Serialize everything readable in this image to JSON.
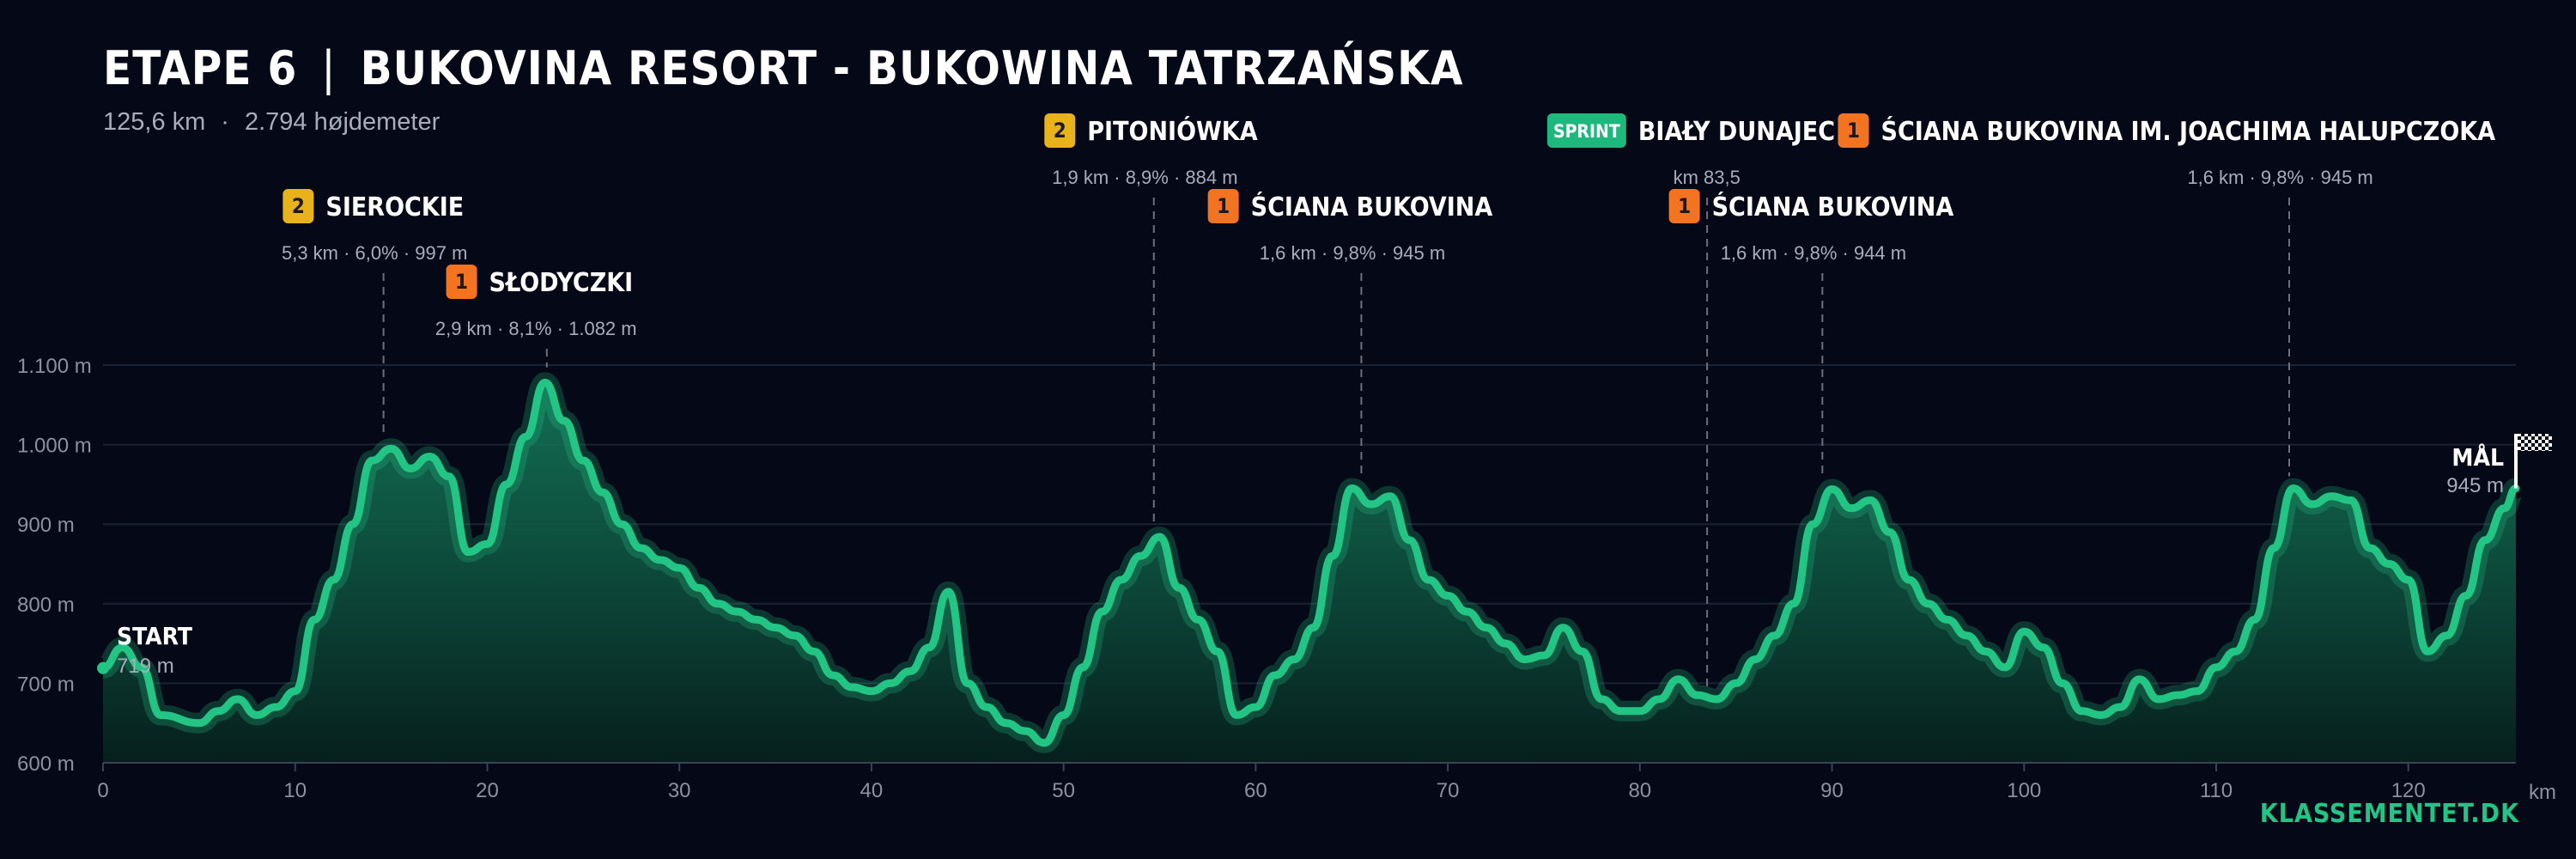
{
  "header": {
    "stage": "ETAPE 6",
    "route": "BUKOVINA RESORT - BUKOWINA TATRZAŃSKA",
    "distance": "125,6 km",
    "elevation_gain": "2.794 højdemeter"
  },
  "brand": "KLASSEMENTET.DK",
  "colors": {
    "background": "#050816",
    "line": "#23c585",
    "cat1": "#f37321",
    "cat2": "#e8b21a",
    "sprint": "#1db97c",
    "grid": "#1b2233",
    "text_muted": "#a7adba"
  },
  "chart_data": {
    "type": "area",
    "xlabel": "km",
    "ylabel": "",
    "xlim": [
      0,
      125.6
    ],
    "ylim": [
      600,
      1100
    ],
    "x_ticks": [
      0,
      10,
      20,
      30,
      40,
      50,
      60,
      70,
      80,
      90,
      100,
      110,
      120
    ],
    "y_ticks": [
      600,
      700,
      800,
      900,
      1000,
      1100
    ],
    "y_tick_labels": [
      "600 m",
      "700 m",
      "800 m",
      "900 m",
      "1.000 m",
      "1.100 m"
    ],
    "grid": true,
    "start": {
      "label": "START",
      "elevation": "719 m",
      "x": 0,
      "y": 719
    },
    "finish": {
      "label": "MÅL",
      "elevation": "945 m",
      "x": 125.6,
      "y": 945
    },
    "profile": [
      [
        0,
        719
      ],
      [
        1,
        745
      ],
      [
        2,
        720
      ],
      [
        3,
        660
      ],
      [
        5,
        650
      ],
      [
        6,
        665
      ],
      [
        7,
        680
      ],
      [
        8,
        660
      ],
      [
        9,
        670
      ],
      [
        10,
        690
      ],
      [
        11,
        780
      ],
      [
        12,
        830
      ],
      [
        13,
        900
      ],
      [
        14,
        980
      ],
      [
        15,
        995
      ],
      [
        16,
        970
      ],
      [
        17,
        985
      ],
      [
        18,
        960
      ],
      [
        19,
        865
      ],
      [
        20,
        875
      ],
      [
        21,
        950
      ],
      [
        22,
        1010
      ],
      [
        23,
        1078
      ],
      [
        24,
        1030
      ],
      [
        25,
        980
      ],
      [
        26,
        940
      ],
      [
        27,
        900
      ],
      [
        28,
        870
      ],
      [
        29,
        855
      ],
      [
        30,
        845
      ],
      [
        31,
        820
      ],
      [
        32,
        800
      ],
      [
        33,
        790
      ],
      [
        34,
        780
      ],
      [
        35,
        770
      ],
      [
        36,
        760
      ],
      [
        37,
        740
      ],
      [
        38,
        710
      ],
      [
        39,
        695
      ],
      [
        40,
        690
      ],
      [
        41,
        700
      ],
      [
        42,
        715
      ],
      [
        43,
        745
      ],
      [
        44,
        815
      ],
      [
        45,
        700
      ],
      [
        46,
        670
      ],
      [
        47,
        650
      ],
      [
        48,
        640
      ],
      [
        49,
        625
      ],
      [
        50,
        660
      ],
      [
        51,
        720
      ],
      [
        52,
        790
      ],
      [
        53,
        830
      ],
      [
        54,
        860
      ],
      [
        55,
        884
      ],
      [
        56,
        820
      ],
      [
        57,
        780
      ],
      [
        58,
        740
      ],
      [
        59,
        660
      ],
      [
        60,
        670
      ],
      [
        61,
        710
      ],
      [
        62,
        730
      ],
      [
        63,
        770
      ],
      [
        64,
        860
      ],
      [
        65,
        945
      ],
      [
        66,
        925
      ],
      [
        67,
        935
      ],
      [
        68,
        880
      ],
      [
        69,
        830
      ],
      [
        70,
        810
      ],
      [
        71,
        790
      ],
      [
        72,
        770
      ],
      [
        73,
        750
      ],
      [
        74,
        730
      ],
      [
        75,
        735
      ],
      [
        76,
        770
      ],
      [
        77,
        740
      ],
      [
        78,
        680
      ],
      [
        79,
        665
      ],
      [
        80,
        665
      ],
      [
        81,
        680
      ],
      [
        82,
        705
      ],
      [
        83,
        685
      ],
      [
        84,
        680
      ],
      [
        85,
        700
      ],
      [
        86,
        730
      ],
      [
        87,
        760
      ],
      [
        88,
        800
      ],
      [
        89,
        900
      ],
      [
        90,
        944
      ],
      [
        91,
        920
      ],
      [
        92,
        930
      ],
      [
        93,
        890
      ],
      [
        94,
        830
      ],
      [
        95,
        800
      ],
      [
        96,
        780
      ],
      [
        97,
        760
      ],
      [
        98,
        740
      ],
      [
        99,
        720
      ],
      [
        100,
        765
      ],
      [
        101,
        745
      ],
      [
        102,
        700
      ],
      [
        103,
        665
      ],
      [
        104,
        660
      ],
      [
        105,
        670
      ],
      [
        106,
        705
      ],
      [
        107,
        680
      ],
      [
        108,
        685
      ],
      [
        109,
        690
      ],
      [
        110,
        720
      ],
      [
        111,
        740
      ],
      [
        112,
        780
      ],
      [
        113,
        870
      ],
      [
        114,
        945
      ],
      [
        115,
        925
      ],
      [
        116,
        935
      ],
      [
        117,
        930
      ],
      [
        118,
        870
      ],
      [
        119,
        850
      ],
      [
        120,
        830
      ],
      [
        121,
        740
      ],
      [
        122,
        760
      ],
      [
        123,
        810
      ],
      [
        124,
        880
      ],
      [
        125,
        920
      ],
      [
        125.6,
        945
      ]
    ],
    "climbs": [
      {
        "cat": "2",
        "name": "SIEROCKIE",
        "stats": "5,3 km · 6,0% · 997 m",
        "x": 14.6,
        "y": 997,
        "level": 2
      },
      {
        "cat": "1",
        "name": "SŁODYCZKI",
        "stats": "2,9 km · 8,1% · 1.082 m",
        "x": 23.1,
        "y": 1082,
        "level": 3
      },
      {
        "cat": "2",
        "name": "PITONIÓWKA",
        "stats": "1,9 km · 8,9% · 884 m",
        "x": 54.7,
        "y": 884,
        "level": 1
      },
      {
        "cat": "1",
        "name": "ŚCIANA BUKOVINA",
        "stats": "1,6 km · 9,8% · 945 m",
        "x": 65.5,
        "y": 945,
        "level": 2
      },
      {
        "cat": "SPRINT",
        "name": "BIAŁY DUNAJEC",
        "stats": "km 83,5",
        "x": 83.5,
        "y": 680,
        "level": 1
      },
      {
        "cat": "1",
        "name": "ŚCIANA BUKOVINA",
        "stats": "1,6 km · 9,8% · 944 m",
        "x": 89.5,
        "y": 944,
        "level": 2
      },
      {
        "cat": "1",
        "name": "ŚCIANA BUKOVINA IM. JOACHIMA HALUPCZOKA",
        "stats": "1,6 km · 9,8% · 945 m",
        "x": 113.8,
        "y": 945,
        "level": 1
      }
    ]
  }
}
